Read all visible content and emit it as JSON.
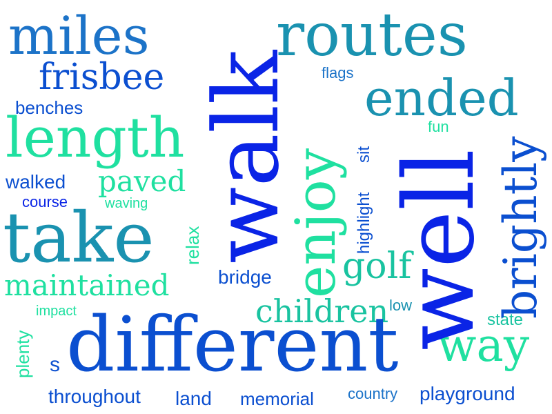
{
  "colors": {
    "blue": "#0a24e6",
    "royal": "#0b4fd0",
    "azure": "#1c73c8",
    "teal": "#1a92b0",
    "mint": "#1fe0a0",
    "sea": "#19c3a0"
  },
  "words": [
    {
      "id": "miles",
      "text": "miles",
      "color": "azure"
    },
    {
      "id": "walk",
      "text": "walk",
      "color": "blue"
    },
    {
      "id": "routes",
      "text": "routes",
      "color": "teal"
    },
    {
      "id": "frisbee",
      "text": "frisbee",
      "color": "royal"
    },
    {
      "id": "flags",
      "text": "flags",
      "color": "azure"
    },
    {
      "id": "ended",
      "text": "ended",
      "color": "teal"
    },
    {
      "id": "benches",
      "text": "benches",
      "color": "royal"
    },
    {
      "id": "enjoy",
      "text": "enjoy",
      "color": "mint"
    },
    {
      "id": "length",
      "text": "length",
      "color": "mint"
    },
    {
      "id": "fun",
      "text": "fun",
      "color": "mint"
    },
    {
      "id": "sit",
      "text": "sit",
      "color": "royal"
    },
    {
      "id": "well",
      "text": "well",
      "color": "blue"
    },
    {
      "id": "walked",
      "text": "walked",
      "color": "royal"
    },
    {
      "id": "paved",
      "text": "paved",
      "color": "mint"
    },
    {
      "id": "course",
      "text": "course",
      "color": "blue"
    },
    {
      "id": "waving",
      "text": "waving",
      "color": "mint"
    },
    {
      "id": "brightly",
      "text": "brightly",
      "color": "royal"
    },
    {
      "id": "highlight",
      "text": "highlight",
      "color": "royal"
    },
    {
      "id": "take",
      "text": "take",
      "color": "teal"
    },
    {
      "id": "relax",
      "text": "relax",
      "color": "mint"
    },
    {
      "id": "golf",
      "text": "golf",
      "color": "sea"
    },
    {
      "id": "maintained",
      "text": "maintained",
      "color": "mint"
    },
    {
      "id": "bridge",
      "text": "bridge",
      "color": "royal"
    },
    {
      "id": "children",
      "text": "children",
      "color": "sea"
    },
    {
      "id": "low",
      "text": "low",
      "color": "teal"
    },
    {
      "id": "plenty",
      "text": "plenty",
      "color": "mint"
    },
    {
      "id": "impact",
      "text": "impact",
      "color": "mint"
    },
    {
      "id": "state",
      "text": "state",
      "color": "sea"
    },
    {
      "id": "different",
      "text": "different",
      "color": "royal"
    },
    {
      "id": "way",
      "text": "way",
      "color": "mint"
    },
    {
      "id": "s",
      "text": "s",
      "color": "royal"
    },
    {
      "id": "throughout",
      "text": "throughout",
      "color": "royal"
    },
    {
      "id": "land",
      "text": "land",
      "color": "royal"
    },
    {
      "id": "memorial",
      "text": "memorial",
      "color": "royal"
    },
    {
      "id": "country",
      "text": "country",
      "color": "azure"
    },
    {
      "id": "playground",
      "text": "playground",
      "color": "royal"
    }
  ]
}
